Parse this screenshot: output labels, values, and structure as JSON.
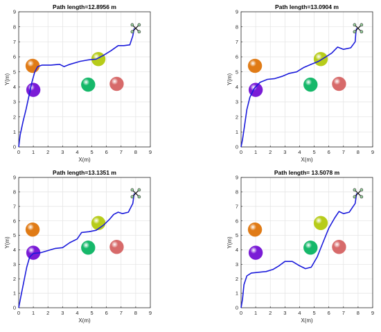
{
  "chart_data": [
    {
      "type": "line",
      "title": "Path length=12.8956 m",
      "xlabel": "X(m)",
      "ylabel": "Y(m)",
      "xlim": [
        0,
        9
      ],
      "ylim": [
        0,
        9
      ],
      "xticks": [
        "0",
        "1",
        "2",
        "3",
        "4",
        "5",
        "6",
        "7",
        "8",
        "9"
      ],
      "yticks": [
        "0",
        "1",
        "2",
        "3",
        "4",
        "5",
        "6",
        "7",
        "8",
        "9"
      ],
      "grid": true,
      "path": [
        [
          0,
          0
        ],
        [
          0.1,
          0.8
        ],
        [
          0.3,
          1.7
        ],
        [
          0.5,
          2.5
        ],
        [
          0.7,
          3.4
        ],
        [
          0.9,
          4.3
        ],
        [
          1.1,
          5.0
        ],
        [
          1.3,
          5.35
        ],
        [
          1.6,
          5.45
        ],
        [
          2.2,
          5.45
        ],
        [
          2.8,
          5.5
        ],
        [
          3.1,
          5.35
        ],
        [
          3.5,
          5.5
        ],
        [
          4.2,
          5.7
        ],
        [
          4.8,
          5.8
        ],
        [
          5.3,
          5.85
        ],
        [
          5.8,
          6.1
        ],
        [
          6.3,
          6.4
        ],
        [
          6.8,
          6.75
        ],
        [
          7.2,
          6.75
        ],
        [
          7.6,
          6.8
        ],
        [
          7.8,
          7.4
        ],
        [
          7.9,
          7.9
        ]
      ],
      "obstacles": [
        {
          "x": 0.95,
          "y": 5.4,
          "color": "#e07b16"
        },
        {
          "x": 1.0,
          "y": 3.8,
          "color": "#7a1cd6"
        },
        {
          "x": 5.45,
          "y": 5.85,
          "color": "#b7cc1a"
        },
        {
          "x": 4.75,
          "y": 4.15,
          "color": "#16b86a"
        },
        {
          "x": 6.7,
          "y": 4.2,
          "color": "#d76a6a"
        }
      ],
      "drone": {
        "x": 8.0,
        "y": 7.9
      },
      "path_color": "#1a1adb"
    },
    {
      "type": "line",
      "title": "Path length=13.0904 m",
      "xlabel": "X(m)",
      "ylabel": "Y(m)",
      "xlim": [
        0,
        9
      ],
      "ylim": [
        0,
        9
      ],
      "xticks": [
        "0",
        "1",
        "2",
        "3",
        "4",
        "5",
        "6",
        "7",
        "8",
        "9"
      ],
      "yticks": [
        "0",
        "1",
        "2",
        "3",
        "4",
        "5",
        "6",
        "7",
        "8",
        "9"
      ],
      "grid": true,
      "path": [
        [
          0,
          0
        ],
        [
          0.1,
          0.5
        ],
        [
          0.25,
          1.5
        ],
        [
          0.4,
          2.5
        ],
        [
          0.6,
          3.3
        ],
        [
          0.9,
          3.9
        ],
        [
          1.3,
          4.3
        ],
        [
          1.8,
          4.5
        ],
        [
          2.3,
          4.55
        ],
        [
          2.8,
          4.7
        ],
        [
          3.3,
          4.9
        ],
        [
          3.8,
          5.0
        ],
        [
          4.3,
          5.3
        ],
        [
          4.8,
          5.5
        ],
        [
          5.3,
          5.7
        ],
        [
          5.8,
          6.0
        ],
        [
          6.2,
          6.25
        ],
        [
          6.6,
          6.65
        ],
        [
          7.0,
          6.5
        ],
        [
          7.5,
          6.6
        ],
        [
          7.8,
          7.0
        ],
        [
          7.85,
          7.6
        ],
        [
          7.9,
          7.9
        ]
      ],
      "obstacles": [
        {
          "x": 0.95,
          "y": 5.4,
          "color": "#e07b16"
        },
        {
          "x": 1.0,
          "y": 3.8,
          "color": "#7a1cd6"
        },
        {
          "x": 5.45,
          "y": 5.85,
          "color": "#b7cc1a"
        },
        {
          "x": 4.75,
          "y": 4.15,
          "color": "#16b86a"
        },
        {
          "x": 6.7,
          "y": 4.2,
          "color": "#d76a6a"
        }
      ],
      "drone": {
        "x": 8.0,
        "y": 7.9
      },
      "path_color": "#1a1adb"
    },
    {
      "type": "line",
      "title": "Path length=13.1351 m",
      "xlabel": "X(m)",
      "ylabel": "Y(m)",
      "xlim": [
        0,
        9
      ],
      "ylim": [
        0,
        9
      ],
      "xticks": [
        "0",
        "1",
        "2",
        "3",
        "4",
        "5",
        "6",
        "7",
        "8",
        "9"
      ],
      "yticks": [
        "0",
        "1",
        "2",
        "3",
        "4",
        "5",
        "6",
        "7",
        "8",
        "9"
      ],
      "grid": true,
      "path": [
        [
          0,
          0
        ],
        [
          0.15,
          0.8
        ],
        [
          0.35,
          1.8
        ],
        [
          0.55,
          2.8
        ],
        [
          0.75,
          3.5
        ],
        [
          1.0,
          3.75
        ],
        [
          1.5,
          3.8
        ],
        [
          2.0,
          3.95
        ],
        [
          2.5,
          4.1
        ],
        [
          3.0,
          4.15
        ],
        [
          3.5,
          4.5
        ],
        [
          4.0,
          4.75
        ],
        [
          4.3,
          5.2
        ],
        [
          4.8,
          5.25
        ],
        [
          5.3,
          5.35
        ],
        [
          5.8,
          5.7
        ],
        [
          6.2,
          6.1
        ],
        [
          6.5,
          6.45
        ],
        [
          6.8,
          6.6
        ],
        [
          7.1,
          6.5
        ],
        [
          7.5,
          6.6
        ],
        [
          7.8,
          7.2
        ],
        [
          7.9,
          7.9
        ]
      ],
      "obstacles": [
        {
          "x": 0.95,
          "y": 5.4,
          "color": "#e07b16"
        },
        {
          "x": 1.0,
          "y": 3.8,
          "color": "#7a1cd6"
        },
        {
          "x": 5.45,
          "y": 5.85,
          "color": "#b7cc1a"
        },
        {
          "x": 4.75,
          "y": 4.15,
          "color": "#16b86a"
        },
        {
          "x": 6.7,
          "y": 4.2,
          "color": "#d76a6a"
        }
      ],
      "drone": {
        "x": 8.0,
        "y": 7.9
      },
      "path_color": "#1a1adb"
    },
    {
      "type": "line",
      "title": "Path length= 13.5078 m",
      "xlabel": "X(m)",
      "ylabel": "Y(m)",
      "xlim": [
        0,
        9
      ],
      "ylim": [
        0,
        9
      ],
      "xticks": [
        "0",
        "1",
        "2",
        "3",
        "4",
        "5",
        "6",
        "7",
        "8",
        "9"
      ],
      "yticks": [
        "0",
        "1",
        "2",
        "3",
        "4",
        "5",
        "6",
        "7",
        "8",
        "9"
      ],
      "grid": true,
      "path": [
        [
          0,
          0
        ],
        [
          0.1,
          0.6
        ],
        [
          0.2,
          1.6
        ],
        [
          0.4,
          2.2
        ],
        [
          0.7,
          2.4
        ],
        [
          1.2,
          2.45
        ],
        [
          1.7,
          2.5
        ],
        [
          2.2,
          2.65
        ],
        [
          2.6,
          2.9
        ],
        [
          3.0,
          3.2
        ],
        [
          3.5,
          3.2
        ],
        [
          4.0,
          2.9
        ],
        [
          4.4,
          2.7
        ],
        [
          4.8,
          2.8
        ],
        [
          5.2,
          3.5
        ],
        [
          5.6,
          4.5
        ],
        [
          6.0,
          5.5
        ],
        [
          6.4,
          6.2
        ],
        [
          6.7,
          6.65
        ],
        [
          7.0,
          6.5
        ],
        [
          7.4,
          6.6
        ],
        [
          7.8,
          7.2
        ],
        [
          7.9,
          7.9
        ]
      ],
      "obstacles": [
        {
          "x": 0.95,
          "y": 5.4,
          "color": "#e07b16"
        },
        {
          "x": 1.0,
          "y": 3.8,
          "color": "#7a1cd6"
        },
        {
          "x": 5.45,
          "y": 5.85,
          "color": "#b7cc1a"
        },
        {
          "x": 4.75,
          "y": 4.15,
          "color": "#16b86a"
        },
        {
          "x": 6.7,
          "y": 4.2,
          "color": "#d76a6a"
        }
      ],
      "drone": {
        "x": 8.0,
        "y": 7.9
      },
      "path_color": "#1a1adb"
    }
  ]
}
